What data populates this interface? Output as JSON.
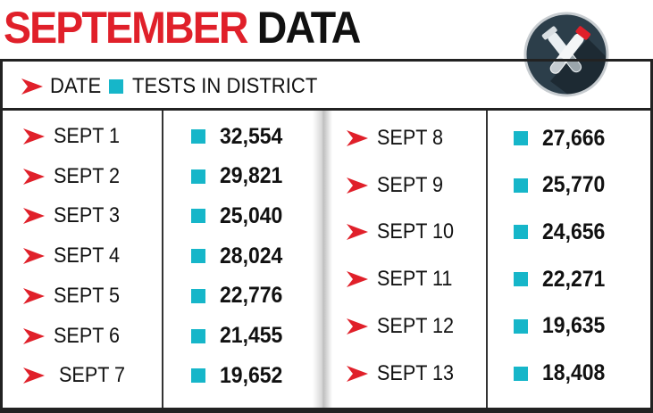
{
  "title": {
    "part1": "SEPTEMBER",
    "part2": "DATA"
  },
  "colors": {
    "title_red": "#e0202a",
    "accent_cyan": "#16b6c9",
    "badge_bg": "#2c3e4a"
  },
  "badge": {
    "icon": "test-tubes-icon"
  },
  "legend": {
    "date_label": "DATE",
    "tests_label": "TESTS IN DISTRICT"
  },
  "chart_data": {
    "type": "table",
    "columns": [
      "DATE",
      "TESTS IN DISTRICT"
    ],
    "rows": [
      {
        "date": "SEPT 1",
        "tests": "32,554"
      },
      {
        "date": "SEPT 2",
        "tests": "29,821"
      },
      {
        "date": "SEPT 3",
        "tests": "25,040"
      },
      {
        "date": "SEPT 4",
        "tests": "28,024"
      },
      {
        "date": "SEPT 5",
        "tests": "22,776"
      },
      {
        "date": "SEPT 6",
        "tests": "21,455"
      },
      {
        "date": "SEPT 7",
        "tests": "19,652"
      },
      {
        "date": "SEPT 8",
        "tests": "27,666"
      },
      {
        "date": "SEPT 9",
        "tests": "25,770"
      },
      {
        "date": "SEPT 10",
        "tests": "24,656"
      },
      {
        "date": "SEPT 11",
        "tests": "22,271"
      },
      {
        "date": "SEPT 12",
        "tests": "19,635"
      },
      {
        "date": "SEPT 13",
        "tests": "18,408"
      }
    ]
  }
}
